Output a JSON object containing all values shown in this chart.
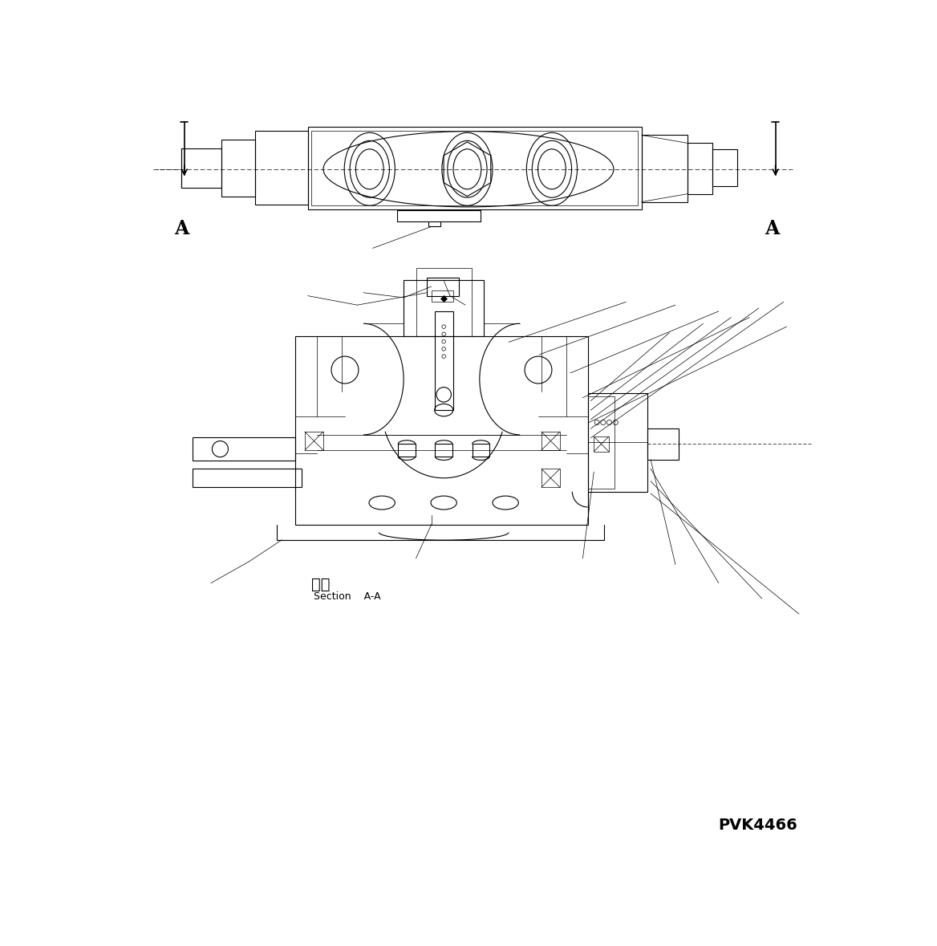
{
  "bg_color": "#ffffff",
  "line_color": "#000000",
  "lw": 0.8,
  "lw_thin": 0.5,
  "lw_thick": 1.2,
  "label_A_left": "A",
  "label_A_right": "A",
  "section_jp": "断面",
  "section_en": "Section    A-A",
  "part_code": "PVK4466",
  "figsize": [
    11.68,
    11.79
  ],
  "dpi": 100
}
